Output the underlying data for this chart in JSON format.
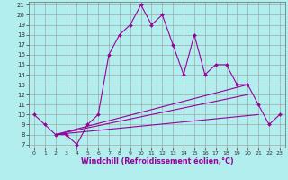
{
  "xlabel": "Windchill (Refroidissement éolien,°C)",
  "x": [
    0,
    1,
    2,
    3,
    4,
    5,
    6,
    7,
    8,
    9,
    10,
    11,
    12,
    13,
    14,
    15,
    16,
    17,
    18,
    19,
    20,
    21,
    22,
    23
  ],
  "line1": [
    10,
    9,
    8,
    8,
    7,
    9,
    10,
    16,
    18,
    19,
    21,
    19,
    20,
    17,
    14,
    18,
    14,
    15,
    15,
    13,
    13,
    11,
    9,
    10
  ],
  "line2_x": [
    2,
    20
  ],
  "line2_y": [
    8,
    13
  ],
  "line3_x": [
    2,
    20
  ],
  "line3_y": [
    8,
    12
  ],
  "line4_x": [
    2,
    21
  ],
  "line4_y": [
    8,
    10
  ],
  "line_color": "#990099",
  "bg_color": "#b2eeee",
  "grid_color": "#999999",
  "ylim": [
    7,
    21
  ],
  "xlim": [
    -0.5,
    23.5
  ],
  "yticks": [
    7,
    8,
    9,
    10,
    11,
    12,
    13,
    14,
    15,
    16,
    17,
    18,
    19,
    20,
    21
  ],
  "xticks": [
    0,
    1,
    2,
    3,
    4,
    5,
    6,
    7,
    8,
    9,
    10,
    11,
    12,
    13,
    14,
    15,
    16,
    17,
    18,
    19,
    20,
    21,
    22,
    23
  ],
  "marker": "D",
  "markersize": 2.0,
  "linewidth": 0.8,
  "tick_fontsize": 5.0,
  "xlabel_fontsize": 5.8
}
